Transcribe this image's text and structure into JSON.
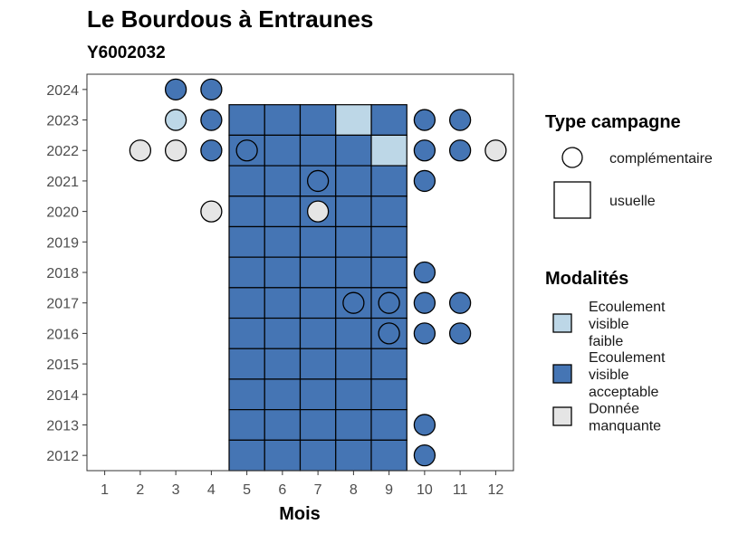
{
  "chart_data": {
    "type": "heatmap",
    "title": "Le Bourdous à Entraunes",
    "subtitle": "Y6002032",
    "xlabel": "Mois",
    "ylabel": "",
    "x_ticks": [
      "1",
      "2",
      "3",
      "4",
      "5",
      "6",
      "7",
      "8",
      "9",
      "10",
      "11",
      "12"
    ],
    "y_ticks": [
      "2012",
      "2013",
      "2014",
      "2015",
      "2016",
      "2017",
      "2018",
      "2019",
      "2020",
      "2021",
      "2022",
      "2023",
      "2024"
    ],
    "xlim": [
      0.5,
      12.5
    ],
    "ylim": [
      2011.5,
      2024.5
    ],
    "colors": {
      "Ecoulement visible faible": "#bdd7e7",
      "Ecoulement visible acceptable": "#4575b4",
      "Donnée manquante": "#e5e5e5"
    },
    "legend_type": {
      "title": "Type campagne",
      "items": [
        "complémentaire",
        "usuelle"
      ]
    },
    "legend_modalites": {
      "title": "Modalités",
      "items": [
        {
          "lines": [
            "Ecoulement",
            "visible",
            "faible"
          ],
          "key": "Ecoulement visible faible"
        },
        {
          "lines": [
            "Ecoulement",
            "visible",
            "acceptable"
          ],
          "key": "Ecoulement visible acceptable"
        },
        {
          "lines": [
            "Donnée",
            "manquante"
          ],
          "key": "Donnée manquante"
        }
      ]
    },
    "usuelle": [
      {
        "year": 2023,
        "months": [
          5,
          6,
          7,
          9
        ],
        "modalite": "Ecoulement visible acceptable"
      },
      {
        "year": 2023,
        "months": [
          8
        ],
        "modalite": "Ecoulement visible faible"
      },
      {
        "year": 2022,
        "months": [
          5,
          6,
          7,
          8
        ],
        "modalite": "Ecoulement visible acceptable"
      },
      {
        "year": 2022,
        "months": [
          9
        ],
        "modalite": "Ecoulement visible faible"
      },
      {
        "year": 2021,
        "months": [
          5,
          6,
          7,
          8,
          9
        ],
        "modalite": "Ecoulement visible acceptable"
      },
      {
        "year": 2020,
        "months": [
          5,
          6,
          7,
          8,
          9
        ],
        "modalite": "Ecoulement visible acceptable"
      },
      {
        "year": 2019,
        "months": [
          5,
          6,
          7,
          8,
          9
        ],
        "modalite": "Ecoulement visible acceptable"
      },
      {
        "year": 2018,
        "months": [
          5,
          6,
          7,
          8,
          9
        ],
        "modalite": "Ecoulement visible acceptable"
      },
      {
        "year": 2017,
        "months": [
          5,
          6,
          7,
          8,
          9
        ],
        "modalite": "Ecoulement visible acceptable"
      },
      {
        "year": 2016,
        "months": [
          5,
          6,
          7,
          8,
          9
        ],
        "modalite": "Ecoulement visible acceptable"
      },
      {
        "year": 2015,
        "months": [
          5,
          6,
          7,
          8,
          9
        ],
        "modalite": "Ecoulement visible acceptable"
      },
      {
        "year": 2014,
        "months": [
          5,
          6,
          7,
          8,
          9
        ],
        "modalite": "Ecoulement visible acceptable"
      },
      {
        "year": 2013,
        "months": [
          5,
          6,
          7,
          8,
          9
        ],
        "modalite": "Ecoulement visible acceptable"
      },
      {
        "year": 2012,
        "months": [
          5,
          6,
          7,
          8,
          9
        ],
        "modalite": "Ecoulement visible acceptable"
      }
    ],
    "complementaire": [
      {
        "year": 2024,
        "month": 3,
        "modalite": "Ecoulement visible acceptable"
      },
      {
        "year": 2024,
        "month": 4,
        "modalite": "Ecoulement visible acceptable"
      },
      {
        "year": 2023,
        "month": 3,
        "modalite": "Ecoulement visible faible"
      },
      {
        "year": 2023,
        "month": 4,
        "modalite": "Ecoulement visible acceptable"
      },
      {
        "year": 2023,
        "month": 10,
        "modalite": "Ecoulement visible acceptable"
      },
      {
        "year": 2023,
        "month": 11,
        "modalite": "Ecoulement visible acceptable"
      },
      {
        "year": 2022,
        "month": 2,
        "modalite": "Donnée manquante"
      },
      {
        "year": 2022,
        "month": 3,
        "modalite": "Donnée manquante"
      },
      {
        "year": 2022,
        "month": 4,
        "modalite": "Ecoulement visible acceptable"
      },
      {
        "year": 2022,
        "month": 5,
        "modalite": "Ecoulement visible acceptable"
      },
      {
        "year": 2022,
        "month": 10,
        "modalite": "Ecoulement visible acceptable"
      },
      {
        "year": 2022,
        "month": 11,
        "modalite": "Ecoulement visible acceptable"
      },
      {
        "year": 2022,
        "month": 12,
        "modalite": "Donnée manquante"
      },
      {
        "year": 2021,
        "month": 7,
        "modalite": "Ecoulement visible acceptable"
      },
      {
        "year": 2021,
        "month": 10,
        "modalite": "Ecoulement visible acceptable"
      },
      {
        "year": 2020,
        "month": 4,
        "modalite": "Donnée manquante"
      },
      {
        "year": 2020,
        "month": 7,
        "modalite": "Donnée manquante"
      },
      {
        "year": 2018,
        "month": 10,
        "modalite": "Ecoulement visible acceptable"
      },
      {
        "year": 2017,
        "month": 8,
        "modalite": "Ecoulement visible acceptable"
      },
      {
        "year": 2017,
        "month": 9,
        "modalite": "Ecoulement visible acceptable"
      },
      {
        "year": 2017,
        "month": 10,
        "modalite": "Ecoulement visible acceptable"
      },
      {
        "year": 2017,
        "month": 11,
        "modalite": "Ecoulement visible acceptable"
      },
      {
        "year": 2016,
        "month": 9,
        "modalite": "Ecoulement visible acceptable"
      },
      {
        "year": 2016,
        "month": 10,
        "modalite": "Ecoulement visible acceptable"
      },
      {
        "year": 2016,
        "month": 11,
        "modalite": "Ecoulement visible acceptable"
      },
      {
        "year": 2013,
        "month": 10,
        "modalite": "Ecoulement visible acceptable"
      },
      {
        "year": 2012,
        "month": 10,
        "modalite": "Ecoulement visible acceptable"
      }
    ]
  }
}
